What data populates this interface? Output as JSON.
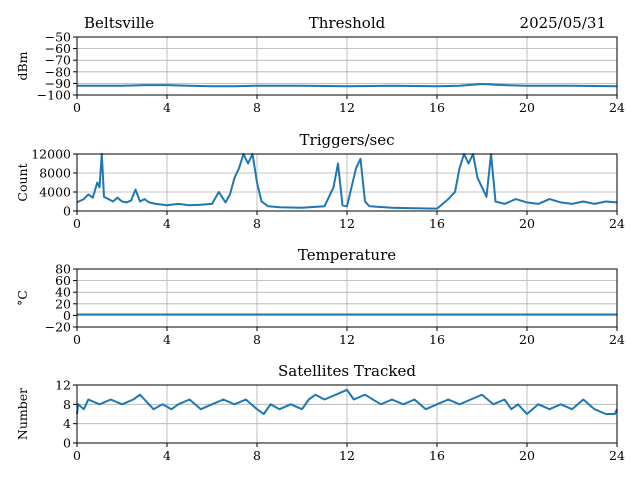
{
  "header": {
    "station": "Beltsville",
    "date": "2025/05/31"
  },
  "colors": {
    "series": "#1f77b4",
    "grid": "#b0b0b0",
    "axes": "#000000"
  },
  "chart_data": [
    {
      "type": "line",
      "title": "Threshold",
      "ylabel": "dBm",
      "xlim": [
        0,
        24
      ],
      "ylim": [
        -100,
        -50
      ],
      "xticks": [
        0,
        4,
        8,
        12,
        16,
        20,
        24
      ],
      "yticks": [
        -50,
        -60,
        -70,
        -80,
        -90,
        -100
      ],
      "grid": true,
      "series": [
        {
          "x": [
            0,
            2,
            3,
            4,
            5,
            6,
            7,
            8,
            9,
            10,
            12,
            14,
            16,
            17,
            18,
            18.5,
            19,
            20,
            22,
            24
          ],
          "y": [
            -92,
            -92,
            -91.5,
            -91.5,
            -92,
            -92.5,
            -92.5,
            -92,
            -92,
            -92,
            -92.5,
            -92,
            -92.5,
            -92,
            -90.5,
            -91,
            -91.5,
            -92,
            -92,
            -92.5
          ]
        }
      ]
    },
    {
      "type": "line",
      "title": "Triggers/sec",
      "ylabel": "Count",
      "xlim": [
        0,
        24
      ],
      "ylim": [
        0,
        12000
      ],
      "xticks": [
        0,
        4,
        8,
        12,
        16,
        20,
        24
      ],
      "yticks": [
        0,
        4000,
        8000,
        12000
      ],
      "grid": true,
      "series": [
        {
          "x": [
            0,
            0.3,
            0.5,
            0.7,
            0.9,
            1.0,
            1.1,
            1.2,
            1.4,
            1.6,
            1.8,
            2.0,
            2.2,
            2.4,
            2.6,
            2.8,
            3.0,
            3.2,
            3.5,
            4.0,
            4.5,
            5.0,
            5.5,
            6.0,
            6.3,
            6.6,
            6.8,
            7.0,
            7.2,
            7.4,
            7.6,
            7.8,
            8.0,
            8.2,
            8.5,
            9.0,
            10.0,
            11.0,
            11.4,
            11.6,
            11.8,
            12.0,
            12.4,
            12.6,
            12.8,
            13.0,
            14.0,
            15.0,
            16.0,
            16.5,
            16.8,
            17.0,
            17.2,
            17.4,
            17.6,
            17.8,
            18.0,
            18.2,
            18.4,
            18.6,
            19.0,
            19.5,
            20.0,
            20.5,
            21.0,
            21.5,
            22.0,
            22.5,
            23.0,
            23.5,
            24.0
          ],
          "y": [
            1800,
            2500,
            3500,
            2800,
            6000,
            5000,
            12000,
            3000,
            2500,
            2000,
            2800,
            2000,
            1800,
            2200,
            4500,
            2000,
            2500,
            1800,
            1500,
            1200,
            1500,
            1200,
            1300,
            1500,
            4000,
            1800,
            3500,
            7000,
            9000,
            12000,
            10000,
            12000,
            6000,
            2000,
            1000,
            800,
            700,
            1000,
            5000,
            10000,
            1200,
            1000,
            9000,
            11000,
            2000,
            1000,
            700,
            600,
            500,
            2500,
            4000,
            9000,
            12000,
            10000,
            12000,
            7000,
            5000,
            3000,
            12000,
            2000,
            1500,
            2500,
            1800,
            1500,
            2500,
            1800,
            1500,
            2000,
            1500,
            2000,
            1800
          ]
        }
      ]
    },
    {
      "type": "line",
      "title": "Temperature",
      "ylabel": "°C",
      "xlim": [
        0,
        24
      ],
      "ylim": [
        -20,
        80
      ],
      "xticks": [
        0,
        4,
        8,
        12,
        16,
        20,
        24
      ],
      "yticks": [
        80,
        60,
        40,
        20,
        0,
        -20
      ],
      "grid": true,
      "series": [
        {
          "x": [
            0,
            24
          ],
          "y": [
            1.5,
            1.5
          ]
        }
      ]
    },
    {
      "type": "line",
      "title": "Satellites Tracked",
      "ylabel": "Number",
      "xlim": [
        0,
        24
      ],
      "ylim": [
        0,
        12
      ],
      "xticks": [
        0,
        4,
        8,
        12,
        16,
        20,
        24
      ],
      "yticks": [
        0,
        4,
        8,
        12
      ],
      "grid": true,
      "series": [
        {
          "x": [
            0,
            0.05,
            0.3,
            0.5,
            1.0,
            1.5,
            2.0,
            2.5,
            2.8,
            3.0,
            3.4,
            3.8,
            4.2,
            4.5,
            5.0,
            5.5,
            6.0,
            6.5,
            7.0,
            7.5,
            8.0,
            8.3,
            8.6,
            9.0,
            9.5,
            10.0,
            10.3,
            10.6,
            11.0,
            11.5,
            12.0,
            12.3,
            12.8,
            13.5,
            14.0,
            14.5,
            15.0,
            15.5,
            16.0,
            16.5,
            17.0,
            17.5,
            18.0,
            18.5,
            19.0,
            19.3,
            19.6,
            20.0,
            20.5,
            21.0,
            21.5,
            22.0,
            22.5,
            23.0,
            23.5,
            23.9,
            24.0
          ],
          "y": [
            6,
            8,
            7,
            9,
            8,
            9,
            8,
            9,
            10,
            9,
            7,
            8,
            7,
            8,
            9,
            7,
            8,
            9,
            8,
            9,
            7,
            6,
            8,
            7,
            8,
            7,
            9,
            10,
            9,
            10,
            11,
            9,
            10,
            8,
            9,
            8,
            9,
            7,
            8,
            9,
            8,
            9,
            10,
            8,
            9,
            7,
            8,
            6,
            8,
            7,
            8,
            7,
            9,
            7,
            6,
            6,
            7
          ]
        }
      ]
    }
  ]
}
